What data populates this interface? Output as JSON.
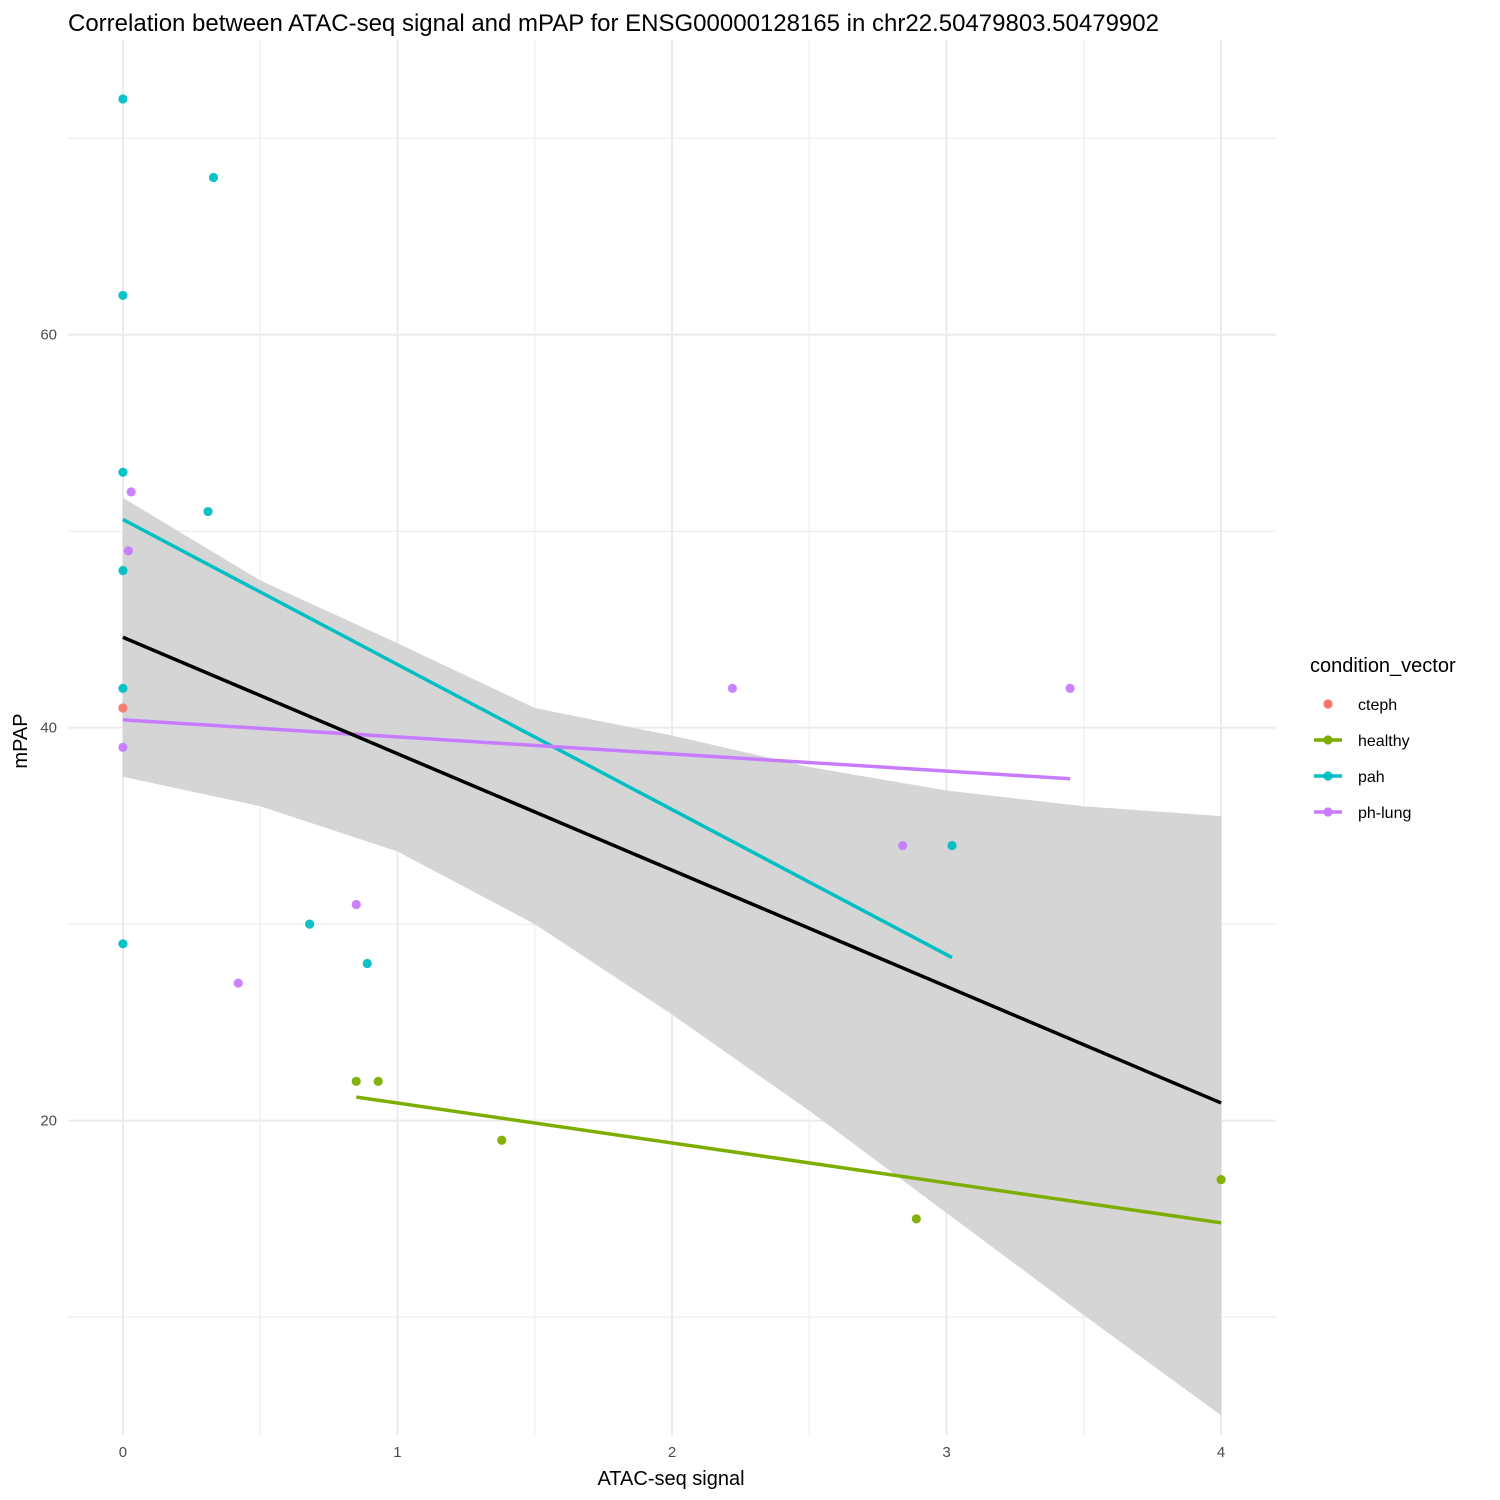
{
  "chart_data": {
    "type": "scatter",
    "title": "Correlation between ATAC-seq signal and mPAP for ENSG00000128165 in chr22.50479803.50479902",
    "xlabel": "ATAC-seq signal",
    "ylabel": "mPAP",
    "xlim": [
      -0.2,
      4.2
    ],
    "ylim": [
      4,
      75
    ],
    "x_ticks": [
      0,
      1,
      2,
      3,
      4
    ],
    "y_ticks": [
      20,
      40,
      60
    ],
    "grid": true,
    "legend": {
      "title": "condition_vector",
      "position": "right",
      "entries": [
        {
          "label": "cteph",
          "color": "#F8766D",
          "has_line": false
        },
        {
          "label": "healthy",
          "color": "#7CAE00",
          "has_line": true
        },
        {
          "label": "pah",
          "color": "#00BFC4",
          "has_line": true
        },
        {
          "label": "ph-lung",
          "color": "#C77CFF",
          "has_line": true
        }
      ]
    },
    "series": [
      {
        "name": "cteph",
        "color": "#F8766D",
        "points": [
          [
            0.0,
            41
          ]
        ]
      },
      {
        "name": "healthy",
        "color": "#7CAE00",
        "points": [
          [
            0.85,
            22
          ],
          [
            0.93,
            22
          ],
          [
            1.38,
            19
          ],
          [
            2.89,
            15
          ],
          [
            4.0,
            17
          ]
        ],
        "fit": [
          [
            0.85,
            21.2
          ],
          [
            4.0,
            14.8
          ]
        ]
      },
      {
        "name": "pah",
        "color": "#00BFC4",
        "points": [
          [
            0.0,
            72
          ],
          [
            0.33,
            68
          ],
          [
            0.0,
            62
          ],
          [
            0.0,
            53
          ],
          [
            0.31,
            51
          ],
          [
            0.0,
            48
          ],
          [
            0.0,
            42
          ],
          [
            0.68,
            30
          ],
          [
            0.0,
            29
          ],
          [
            0.89,
            28
          ],
          [
            3.02,
            34
          ]
        ],
        "fit": [
          [
            0.0,
            50.6
          ],
          [
            3.02,
            28.3
          ]
        ]
      },
      {
        "name": "ph-lung",
        "color": "#C77CFF",
        "points": [
          [
            0.03,
            52
          ],
          [
            0.02,
            49
          ],
          [
            0.0,
            39
          ],
          [
            2.22,
            42
          ],
          [
            3.45,
            42
          ],
          [
            2.84,
            34
          ],
          [
            0.85,
            31
          ],
          [
            0.42,
            27
          ]
        ],
        "fit": [
          [
            0.0,
            40.4
          ],
          [
            3.45,
            37.4
          ]
        ]
      }
    ],
    "overall_fit": {
      "color": "#000000",
      "line": [
        [
          0.0,
          44.6
        ],
        [
          4.0,
          20.9
        ]
      ],
      "ci_band": {
        "color": "#d3d3d3",
        "x": [
          0.0,
          0.5,
          1.0,
          1.5,
          2.0,
          2.5,
          3.0,
          3.5,
          4.0
        ],
        "lower": [
          37.5,
          36.0,
          33.7,
          30.0,
          25.4,
          20.5,
          15.3,
          10.1,
          5.0
        ],
        "upper": [
          51.7,
          47.5,
          44.3,
          41.0,
          39.6,
          38.0,
          36.8,
          36.0,
          35.5
        ]
      }
    }
  }
}
